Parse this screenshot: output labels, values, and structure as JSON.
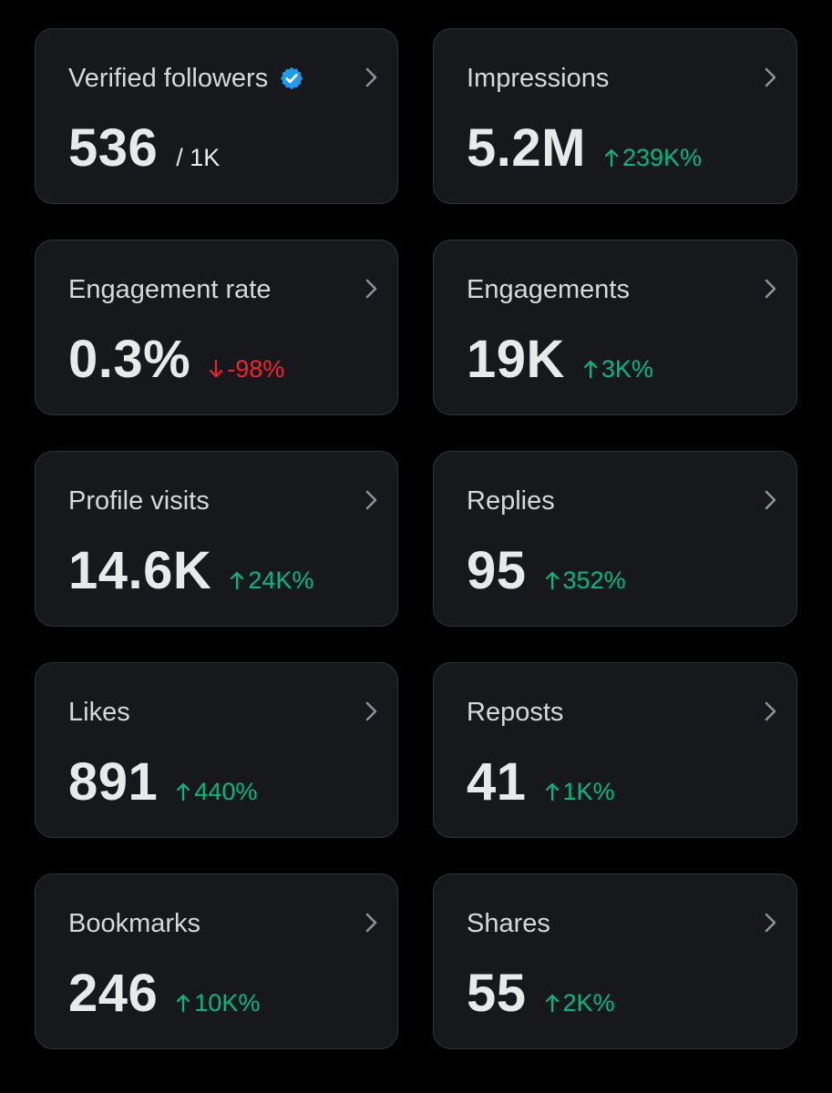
{
  "colors": {
    "background": "#000000",
    "card": "#16181c",
    "border": "#2f3336",
    "positive": "#00ba7c",
    "negative": "#f4212e",
    "verified": "#1d9bf0"
  },
  "cards": [
    {
      "title": "Verified followers",
      "value": "536",
      "suffix": "/ 1K",
      "icon": "verified-badge-icon"
    },
    {
      "title": "Impressions",
      "value": "5.2M",
      "change": "239K%",
      "direction": "up"
    },
    {
      "title": "Engagement rate",
      "value": "0.3%",
      "change": "-98%",
      "direction": "down"
    },
    {
      "title": "Engagements",
      "value": "19K",
      "change": "3K%",
      "direction": "up"
    },
    {
      "title": "Profile visits",
      "value": "14.6K",
      "change": "24K%",
      "direction": "up"
    },
    {
      "title": "Replies",
      "value": "95",
      "change": "352%",
      "direction": "up"
    },
    {
      "title": "Likes",
      "value": "891",
      "change": "440%",
      "direction": "up"
    },
    {
      "title": "Reposts",
      "value": "41",
      "change": "1K%",
      "direction": "up"
    },
    {
      "title": "Bookmarks",
      "value": "246",
      "change": "10K%",
      "direction": "up"
    },
    {
      "title": "Shares",
      "value": "55",
      "change": "2K%",
      "direction": "up"
    }
  ]
}
